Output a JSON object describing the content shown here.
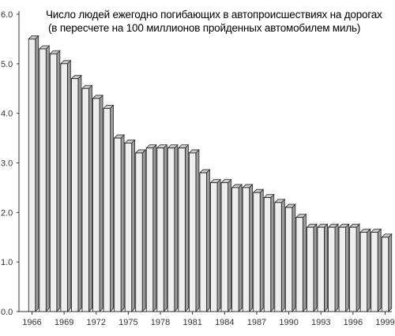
{
  "chart_data": {
    "type": "bar",
    "title": "Число людей ежегодно погибающих в автопроисшествиях на дорогах",
    "subtitle": "(в пересчете на 100 миллионов пройденных автомобилем миль)",
    "xlabel": "",
    "ylabel": "",
    "ylim": [
      0,
      6
    ],
    "yticks": [
      "0.0",
      "1.0",
      "2.0",
      "3.0",
      "4.0",
      "5.0",
      "6.0"
    ],
    "xticks": [
      "1966",
      "1969",
      "1972",
      "1975",
      "1978",
      "1981",
      "1984",
      "1987",
      "1990",
      "1993",
      "1996",
      "1999"
    ],
    "categories": [
      "1966",
      "1967",
      "1968",
      "1969",
      "1970",
      "1971",
      "1972",
      "1973",
      "1974",
      "1975",
      "1976",
      "1977",
      "1978",
      "1979",
      "1980",
      "1981",
      "1982",
      "1983",
      "1984",
      "1985",
      "1986",
      "1987",
      "1988",
      "1989",
      "1990",
      "1991",
      "1992",
      "1993",
      "1994",
      "1995",
      "1996",
      "1997",
      "1998",
      "1999"
    ],
    "values": [
      5.5,
      5.3,
      5.2,
      5.0,
      4.7,
      4.5,
      4.3,
      4.1,
      3.5,
      3.4,
      3.2,
      3.3,
      3.3,
      3.3,
      3.3,
      3.2,
      2.8,
      2.6,
      2.6,
      2.5,
      2.5,
      2.4,
      2.3,
      2.2,
      2.1,
      1.9,
      1.7,
      1.7,
      1.7,
      1.7,
      1.7,
      1.6,
      1.6,
      1.5
    ],
    "grid": false,
    "legend": "none",
    "bar_colors": {
      "front": "#eeeeee",
      "side": "#9c9c9c",
      "top": "#c8c8c8",
      "edge": "#2a2a2a"
    }
  }
}
